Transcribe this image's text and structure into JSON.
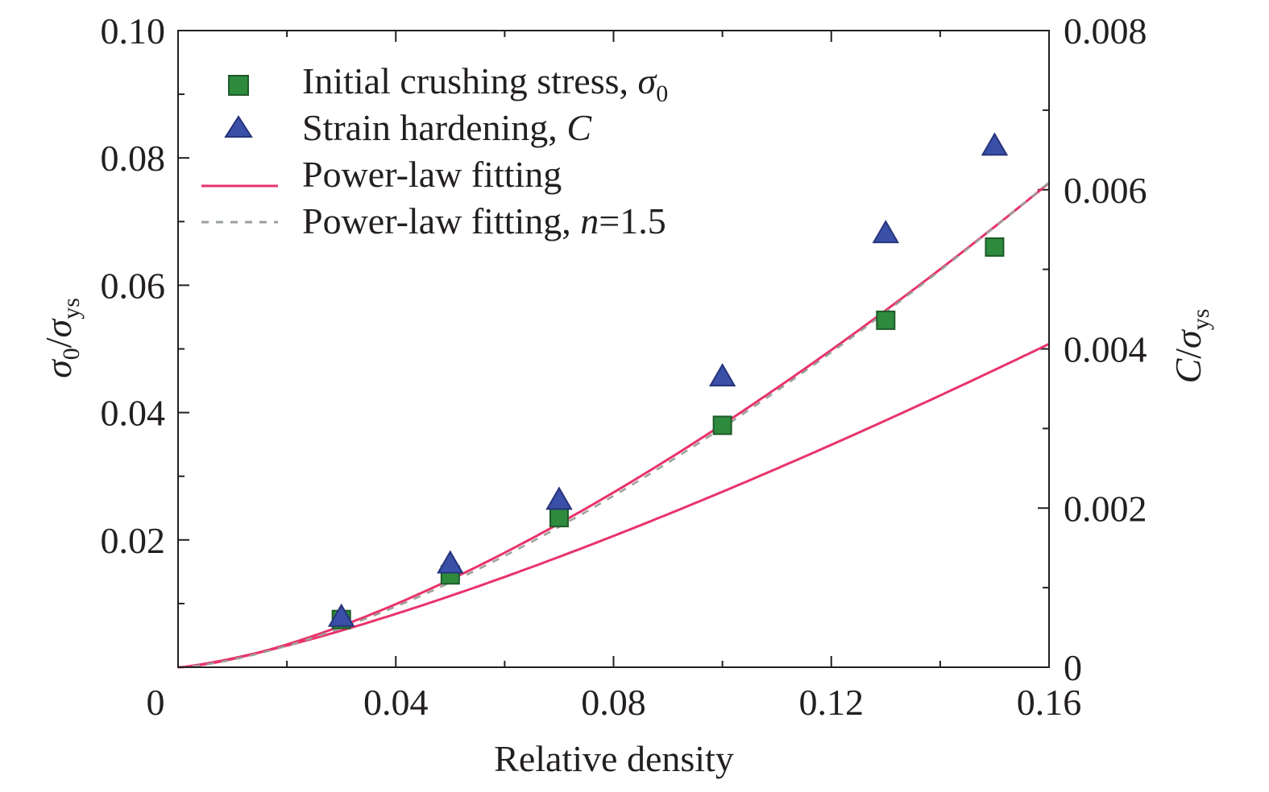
{
  "chart_data": {
    "type": "scatter",
    "xlabel": "Relative density",
    "ylabel_left": {
      "main": "σ",
      "main_sub": "0",
      "sep": "/",
      "denom": "σ",
      "denom_sub": "ys"
    },
    "ylabel_right": {
      "main": "C",
      "sep": "/",
      "denom": "σ",
      "denom_sub": "ys"
    },
    "xlim": [
      0,
      0.16
    ],
    "ylim_left": [
      0,
      0.1
    ],
    "ylim_right": [
      0,
      0.008
    ],
    "x_ticks": [
      "0",
      "0.04",
      "0.08",
      "0.12",
      "0.16"
    ],
    "y_left_ticks": [
      "0.02",
      "0.04",
      "0.06",
      "0.08",
      "0.10"
    ],
    "y_right_ticks": [
      "0",
      "0.002",
      "0.004",
      "0.006",
      "0.008"
    ],
    "series": [
      {
        "name": "Initial crushing stress, σ0",
        "axis": "left",
        "marker": "square",
        "color": "#2e8b3e",
        "x": [
          0.03,
          0.05,
          0.07,
          0.1,
          0.13,
          0.15
        ],
        "y": [
          0.0075,
          0.0145,
          0.0235,
          0.038,
          0.0545,
          0.066
        ]
      },
      {
        "name": "Strain hardening, C",
        "axis": "right",
        "marker": "triangle",
        "color": "#3a4fa8",
        "x": [
          0.03,
          0.05,
          0.07,
          0.1,
          0.13,
          0.15
        ],
        "y": [
          0.00063,
          0.0013,
          0.0021,
          0.00365,
          0.00545,
          0.00655
        ]
      }
    ],
    "fits": [
      {
        "name": "Power-law fitting",
        "style": "solid",
        "color": "#e8336b",
        "axis": "left",
        "coef": 0.55,
        "exponent": 1.3
      },
      {
        "name": "Power-law fitting",
        "style": "solid",
        "color": "#e8336b",
        "axis": "right",
        "coef": 0.09,
        "exponent": 1.47
      },
      {
        "name": "Power-law fitting, n=1.5",
        "style": "dashed",
        "color": "#9aa19a",
        "axis": "left",
        "coef": 1.19,
        "exponent": 1.5
      }
    ],
    "legend": {
      "placement": "top-left",
      "entries": [
        {
          "marker": "square",
          "label": "Initial crushing stress, ",
          "symbol": "σ",
          "symbol_sub": "0"
        },
        {
          "marker": "triangle",
          "label": "Strain hardening, ",
          "symbol": "C"
        },
        {
          "marker": "solid-line",
          "label": "Power-law fitting"
        },
        {
          "marker": "dashed-line",
          "label": "Power-law fitting, ",
          "symbol": "n",
          "suffix": "=1.5"
        }
      ]
    }
  }
}
